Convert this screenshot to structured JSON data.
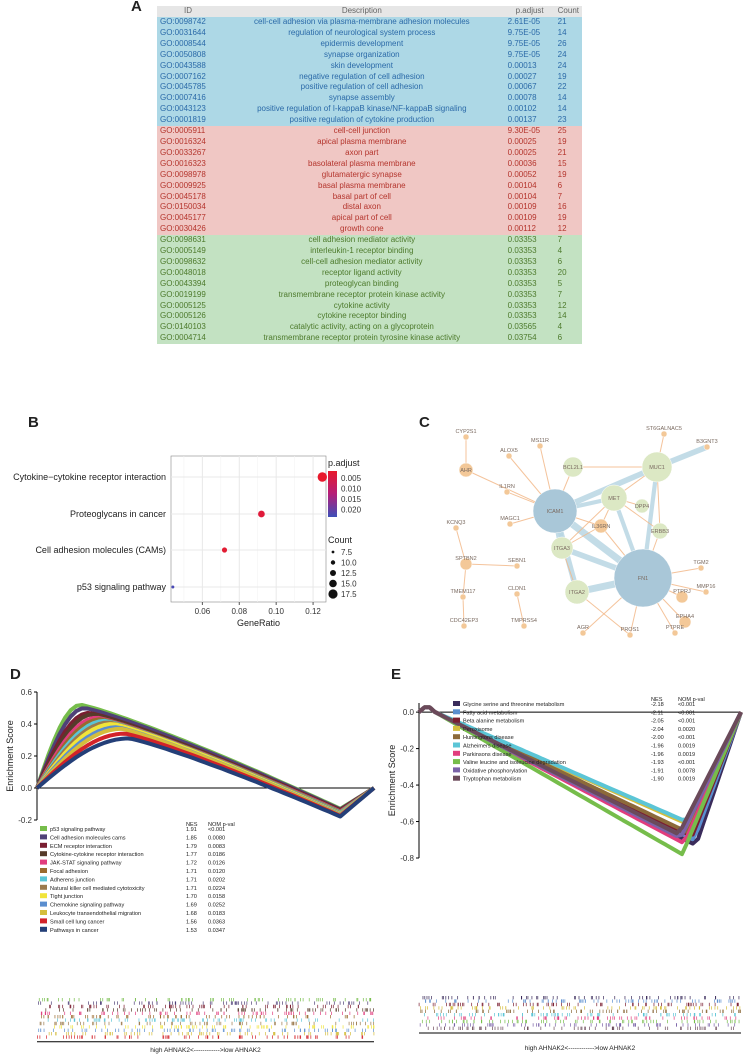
{
  "panels": {
    "a": "A",
    "b": "B",
    "c": "C",
    "d": "D",
    "e": "E"
  },
  "table_a": {
    "headers": [
      "ID",
      "Description",
      "p.adjust",
      "Count"
    ],
    "rows": [
      {
        "id": "GO:0098742",
        "desc": "cell-cell adhesion via plasma-membrane adhesion molecules",
        "padj": "2.61E-05",
        "count": "21",
        "cat": "bp"
      },
      {
        "id": "GO:0031644",
        "desc": "regulation of neurological system process",
        "padj": "9.75E-05",
        "count": "14",
        "cat": "bp"
      },
      {
        "id": "GO:0008544",
        "desc": "epidermis development",
        "padj": "9.75E-05",
        "count": "26",
        "cat": "bp"
      },
      {
        "id": "GO:0050808",
        "desc": "synapse organization",
        "padj": "9.75E-05",
        "count": "24",
        "cat": "bp"
      },
      {
        "id": "GO:0043588",
        "desc": "skin development",
        "padj": "0.00013",
        "count": "24",
        "cat": "bp"
      },
      {
        "id": "GO:0007162",
        "desc": "negative regulation of cell adhesion",
        "padj": "0.00027",
        "count": "19",
        "cat": "bp"
      },
      {
        "id": "GO:0045785",
        "desc": "positive regulation of cell adhesion",
        "padj": "0.00067",
        "count": "22",
        "cat": "bp"
      },
      {
        "id": "GO:0007416",
        "desc": "synapse assembly",
        "padj": "0.00078",
        "count": "14",
        "cat": "bp"
      },
      {
        "id": "GO:0043123",
        "desc": "positive regulation of I-kappaB kinase/NF-kappaB signaling",
        "padj": "0.00102",
        "count": "14",
        "cat": "bp"
      },
      {
        "id": "GO:0001819",
        "desc": "positive regulation of cytokine production",
        "padj": "0.00137",
        "count": "23",
        "cat": "bp"
      },
      {
        "id": "GO:0005911",
        "desc": "cell-cell junction",
        "padj": "9.30E-05",
        "count": "25",
        "cat": "cc"
      },
      {
        "id": "GO:0016324",
        "desc": "apical plasma membrane",
        "padj": "0.00025",
        "count": "19",
        "cat": "cc"
      },
      {
        "id": "GO:0033267",
        "desc": "axon part",
        "padj": "0.00025",
        "count": "21",
        "cat": "cc"
      },
      {
        "id": "GO:0016323",
        "desc": "basolateral plasma membrane",
        "padj": "0.00036",
        "count": "15",
        "cat": "cc"
      },
      {
        "id": "GO:0098978",
        "desc": "glutamatergic synapse",
        "padj": "0.00052",
        "count": "19",
        "cat": "cc"
      },
      {
        "id": "GO:0009925",
        "desc": "basal plasma membrane",
        "padj": "0.00104",
        "count": "6",
        "cat": "cc"
      },
      {
        "id": "GO:0045178",
        "desc": "basal part of cell",
        "padj": "0.00104",
        "count": "7",
        "cat": "cc"
      },
      {
        "id": "GO:0150034",
        "desc": "distal axon",
        "padj": "0.00109",
        "count": "16",
        "cat": "cc"
      },
      {
        "id": "GO:0045177",
        "desc": "apical part of cell",
        "padj": "0.00109",
        "count": "19",
        "cat": "cc"
      },
      {
        "id": "GO:0030426",
        "desc": "growth cone",
        "padj": "0.00112",
        "count": "12",
        "cat": "cc"
      },
      {
        "id": "GO:0098631",
        "desc": "cell adhesion mediator activity",
        "padj": "0.03353",
        "count": "7",
        "cat": "mf"
      },
      {
        "id": "GO:0005149",
        "desc": "interleukin-1 receptor binding",
        "padj": "0.03353",
        "count": "4",
        "cat": "mf"
      },
      {
        "id": "GO:0098632",
        "desc": "cell-cell adhesion mediator activity",
        "padj": "0.03353",
        "count": "6",
        "cat": "mf"
      },
      {
        "id": "GO:0048018",
        "desc": "receptor ligand activity",
        "padj": "0.03353",
        "count": "20",
        "cat": "mf"
      },
      {
        "id": "GO:0043394",
        "desc": "proteoglycan binding",
        "padj": "0.03353",
        "count": "5",
        "cat": "mf"
      },
      {
        "id": "GO:0019199",
        "desc": "transmembrane receptor protein kinase activity",
        "padj": "0.03353",
        "count": "7",
        "cat": "mf"
      },
      {
        "id": "GO:0005125",
        "desc": "cytokine activity",
        "padj": "0.03353",
        "count": "12",
        "cat": "mf"
      },
      {
        "id": "GO:0005126",
        "desc": "cytokine receptor binding",
        "padj": "0.03353",
        "count": "14",
        "cat": "mf"
      },
      {
        "id": "GO:0140103",
        "desc": "catalytic activity, acting on a glycoprotein",
        "padj": "0.03565",
        "count": "4",
        "cat": "mf"
      },
      {
        "id": "GO:0004714",
        "desc": "transmembrane receptor protein tyrosine kinase activity",
        "padj": "0.03754",
        "count": "6",
        "cat": "mf"
      }
    ]
  },
  "chart_data": [
    {
      "type": "scatter",
      "categories": [
        "Cytokine−cytokine receptor interaction",
        "Proteoglycans in cancer",
        "Cell adhesion molecules (CAMs)",
        "p53 signaling pathway"
      ],
      "x": [
        0.125,
        0.092,
        0.072,
        0.044
      ],
      "counts": [
        18,
        13,
        10,
        6
      ],
      "padjust": [
        0.003,
        0.004,
        0.005,
        0.022
      ],
      "colors": [
        "#e8192c",
        "#e01a3a",
        "#e21c33",
        "#4a4ab5"
      ],
      "xlabel": "GeneRatio",
      "xticks": [
        "0.06",
        "0.08",
        "0.10",
        "0.12"
      ],
      "xlim": [
        0.043,
        0.127
      ],
      "legend": {
        "color_title": "p.adjust",
        "color_ticks": [
          "0.005",
          "0.010",
          "0.015",
          "0.020"
        ],
        "size_title": "Count",
        "size_ticks": [
          "7.5",
          "10.0",
          "12.5",
          "15.0",
          "17.5"
        ]
      }
    },
    {
      "type": "line",
      "ylabel": "Enrichment Score",
      "yticks": [
        "0.6",
        "0.4",
        "0.2",
        "0.0",
        "-0.2"
      ],
      "ylim": [
        -0.2,
        0.6
      ],
      "legend_headers": [
        "NES",
        "NOM p-val"
      ],
      "series": [
        {
          "name": "p53 signaling pathway",
          "nes": "1.91",
          "pval": "<0.001",
          "color": "#76bd4b",
          "peak": 0.52
        },
        {
          "name": "Cell adhesion molecules cams",
          "nes": "1.85",
          "pval": "0.0080",
          "color": "#4f4178",
          "peak": 0.5
        },
        {
          "name": "ECM receptor interaction",
          "nes": "1.79",
          "pval": "0.0083",
          "color": "#7a1e31",
          "peak": 0.47
        },
        {
          "name": "Cytokine-cytokine receptor interaction",
          "nes": "1.77",
          "pval": "0.0186",
          "color": "#563b2a",
          "peak": 0.46
        },
        {
          "name": "JAK-STAT signaling pathway",
          "nes": "1.72",
          "pval": "0.0126",
          "color": "#e13d7d",
          "peak": 0.44
        },
        {
          "name": "Focal adhesion",
          "nes": "1.71",
          "pval": "0.0120",
          "color": "#9a6a2e",
          "peak": 0.43
        },
        {
          "name": "Adherens junction",
          "nes": "1.71",
          "pval": "0.0202",
          "color": "#5bc5d6",
          "peak": 0.42
        },
        {
          "name": "Natural killer cell mediated cytotoxicity",
          "nes": "1.71",
          "pval": "0.0224",
          "color": "#9b7a4d",
          "peak": 0.41
        },
        {
          "name": "Tight junction",
          "nes": "1.70",
          "pval": "0.0158",
          "color": "#f1e43a",
          "peak": 0.4
        },
        {
          "name": "Chemokine signaling pathway",
          "nes": "1.69",
          "pval": "0.0252",
          "color": "#5a8ecf",
          "peak": 0.38
        },
        {
          "name": "Leukocyte transendothelial migration",
          "nes": "1.68",
          "pval": "0.0183",
          "color": "#d4bd3c",
          "peak": 0.37
        },
        {
          "name": "Small cell lung cancer",
          "nes": "1.56",
          "pval": "0.0363",
          "color": "#d2232a",
          "peak": 0.34
        },
        {
          "name": "Pathways in cancer",
          "nes": "1.53",
          "pval": "0.0347",
          "color": "#243f78",
          "peak": 0.31
        }
      ]
    },
    {
      "type": "line",
      "ylabel": "Enrichment Score",
      "yticks": [
        "0.0",
        "-0.2",
        "-0.4",
        "-0.6",
        "-0.8"
      ],
      "ylim": [
        -0.8,
        0.05
      ],
      "legend_headers": [
        "NES",
        "NOM p-val"
      ],
      "series": [
        {
          "name": "Glycine serine and threonine metabolism",
          "nes": "-2.18",
          "pval": "<0.001",
          "color": "#3a2b5b",
          "trough": -0.73
        },
        {
          "name": "Fatty acid metabolism",
          "nes": "-2.11",
          "pval": "<0.001",
          "color": "#5a8ecf",
          "trough": -0.7
        },
        {
          "name": "Beta alanine metabolism",
          "nes": "-2.05",
          "pval": "<0.001",
          "color": "#7a1e31",
          "trough": -0.68
        },
        {
          "name": "Peroxisome",
          "nes": "-2.04",
          "pval": "0.0020",
          "color": "#d4bd3c",
          "trough": -0.62
        },
        {
          "name": "Huntingtons disease",
          "nes": "-2.00",
          "pval": "<0.001",
          "color": "#8c6a3a",
          "trough": -0.66
        },
        {
          "name": "Alzheimers disease",
          "nes": "-1.96",
          "pval": "0.0019",
          "color": "#5bc5d6",
          "trough": -0.6
        },
        {
          "name": "Parkinsons disease",
          "nes": "-1.96",
          "pval": "0.0019",
          "color": "#e13d7d",
          "trough": -0.72
        },
        {
          "name": "Valine leucine and isoleucine degradation",
          "nes": "-1.93",
          "pval": "<0.001",
          "color": "#76bd4b",
          "trough": -0.78
        },
        {
          "name": "Oxidative phosphorylation",
          "nes": "-1.91",
          "pval": "0.0078",
          "color": "#7a62a8",
          "trough": -0.69
        },
        {
          "name": "Tryptophan metabolism",
          "nes": "-1.90",
          "pval": "0.0019",
          "color": "#6b4a5a",
          "trough": -0.67
        }
      ]
    }
  ],
  "network": {
    "genes": [
      "CYP2S1",
      "AHR",
      "ALOX5",
      "MS11R",
      "BCL2L1",
      "ST6GALNAC5",
      "B3GNT3",
      "MUC1",
      "ICAM1",
      "IL1RN",
      "MET",
      "DPP4",
      "ERBB3",
      "KCNQ3",
      "MAGC1",
      "ITGA3",
      "IL36RN",
      "TGM2",
      "SPTBN2",
      "SEBN1",
      "FN1",
      "MMP16",
      "TMEM117",
      "CLDN1",
      "ITGA2",
      "PTPRJ",
      "EPHA4",
      "CDC42EP3",
      "TMPRSS4",
      "AGR",
      "PROS1",
      "PTPRE"
    ]
  },
  "gsea_d_axis": "high AHNAK2<------------>low AHNAK2",
  "gsea_e_axis": "high AHNAK2<------------>low AHNAK2"
}
